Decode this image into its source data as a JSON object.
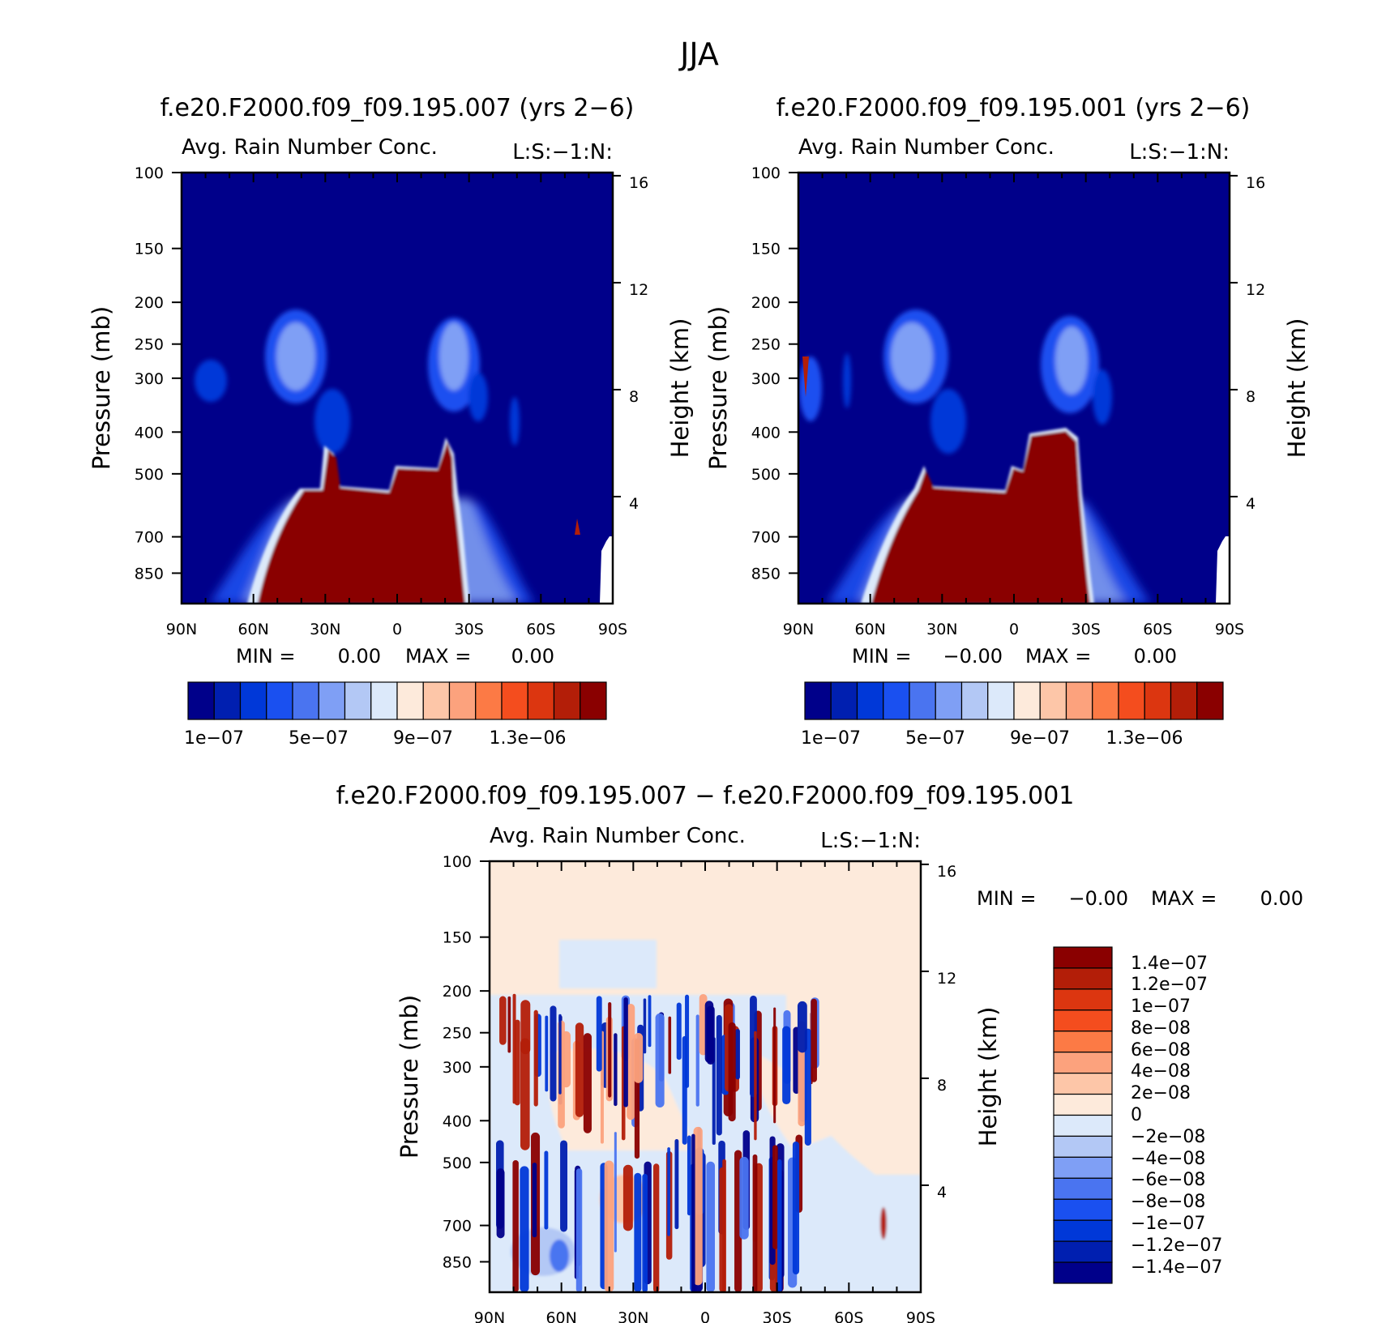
{
  "figure": {
    "super_title": "JJA"
  },
  "colors": {
    "blue": [
      "#00008a",
      "#001fb0",
      "#0038d8",
      "#1a50f0",
      "#4a74f0",
      "#7f9ff5",
      "#b3c8f5",
      "#dce9fa"
    ],
    "red": [
      "#fdeadb",
      "#fdc6a8",
      "#fca27d",
      "#fc7a45",
      "#f44d1e",
      "#dc3610",
      "#b31e08",
      "#8a0000"
    ]
  },
  "chart_data": [
    {
      "type": "heatmap",
      "id": "panel_007",
      "title": "f.e20.F2000.f09_f09.195.007 (yrs 2−6)",
      "subtitle": "Avg. Rain Number Conc.",
      "subtitle_right": "L:S:−1:N:",
      "xlabel": "",
      "ylabel": "Pressure (mb)",
      "ylabel_right": "Height (km)",
      "x_ticks": [
        "90N",
        "60N",
        "30N",
        "0",
        "30S",
        "60S",
        "90S"
      ],
      "y_ticks": [
        "100",
        "150",
        "200",
        "250",
        "300",
        "400",
        "500",
        "700",
        "850"
      ],
      "y_ticks_right": [
        "16",
        "12",
        "8",
        "4"
      ],
      "ylim": [
        100,
        1000
      ],
      "y_scale": "log",
      "min_label": "MIN =",
      "min_value": "0.00",
      "max_label": "MAX =",
      "max_value": "0.00",
      "colorbar": {
        "orientation": "horizontal",
        "labels": [
          "1e−07",
          "5e−07",
          "9e−07",
          "1.3e−06"
        ]
      }
    },
    {
      "type": "heatmap",
      "id": "panel_001",
      "title": "f.e20.F2000.f09_f09.195.001 (yrs 2−6)",
      "subtitle": "Avg. Rain Number Conc.",
      "subtitle_right": "L:S:−1:N:",
      "xlabel": "",
      "ylabel": "Pressure (mb)",
      "ylabel_right": "Height (km)",
      "x_ticks": [
        "90N",
        "60N",
        "30N",
        "0",
        "30S",
        "60S",
        "90S"
      ],
      "y_ticks": [
        "100",
        "150",
        "200",
        "250",
        "300",
        "400",
        "500",
        "700",
        "850"
      ],
      "y_ticks_right": [
        "16",
        "12",
        "8",
        "4"
      ],
      "ylim": [
        100,
        1000
      ],
      "y_scale": "log",
      "min_label": "MIN =",
      "min_value": "−0.00",
      "max_label": "MAX =",
      "max_value": "0.00",
      "colorbar": {
        "orientation": "horizontal",
        "labels": [
          "1e−07",
          "5e−07",
          "9e−07",
          "1.3e−06"
        ]
      }
    },
    {
      "type": "heatmap",
      "id": "panel_diff",
      "title": "f.e20.F2000.f09_f09.195.007 − f.e20.F2000.f09_f09.195.001",
      "subtitle": "Avg. Rain Number Conc.",
      "subtitle_right": "L:S:−1:N:",
      "xlabel": "",
      "ylabel": "Pressure (mb)",
      "ylabel_right": "Height (km)",
      "x_ticks": [
        "90N",
        "60N",
        "30N",
        "0",
        "30S",
        "60S",
        "90S"
      ],
      "y_ticks": [
        "100",
        "150",
        "200",
        "250",
        "300",
        "400",
        "500",
        "700",
        "850"
      ],
      "y_ticks_right": [
        "16",
        "12",
        "8",
        "4"
      ],
      "ylim": [
        100,
        1000
      ],
      "y_scale": "log",
      "min_label": "MIN =",
      "min_value": "−0.00",
      "max_label": "MAX =",
      "max_value": "0.00",
      "colorbar": {
        "orientation": "vertical",
        "labels": [
          "1.4e−07",
          "1.2e−07",
          "1e−07",
          "8e−08",
          "6e−08",
          "4e−08",
          "2e−08",
          "0",
          "−2e−08",
          "−4e−08",
          "−6e−08",
          "−8e−08",
          "−1e−07",
          "−1.2e−07",
          "−1.4e−07"
        ]
      }
    }
  ]
}
